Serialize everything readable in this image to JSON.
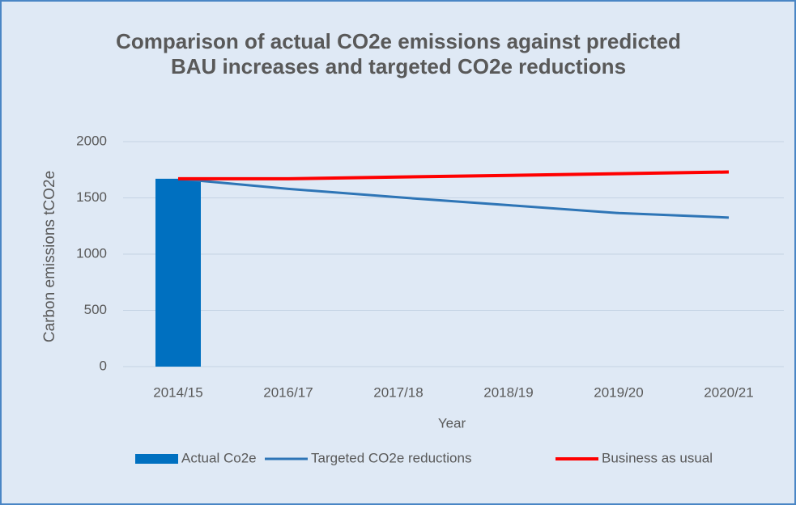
{
  "chart_data": {
    "type": "combo",
    "title": "Comparison of actual CO2e emissions against predicted BAU increases and targeted CO2e reductions",
    "x_label": "Year",
    "y_label": "Carbon emissions tCO2e",
    "categories": [
      "2014/15",
      "2016/17",
      "2017/18",
      "2018/19",
      "2019/20",
      "2020/21"
    ],
    "series": [
      {
        "name": "Actual Co2e",
        "type": "bar",
        "color": "#0070c0",
        "values": [
          1670,
          null,
          null,
          null,
          null,
          null
        ]
      },
      {
        "name": "Targeted CO2e reductions",
        "type": "line",
        "color": "#2e75b6",
        "values": [
          1670,
          1580,
          1505,
          1435,
          1365,
          1325
        ]
      },
      {
        "name": "Business as usual",
        "type": "line",
        "color": "#ff0000",
        "values": [
          1670,
          1670,
          1685,
          1700,
          1715,
          1730
        ]
      }
    ],
    "ylim": [
      0,
      2000
    ],
    "yticks": [
      0,
      500,
      1000,
      1500,
      2000
    ],
    "grid": true,
    "legend": "bottom"
  }
}
